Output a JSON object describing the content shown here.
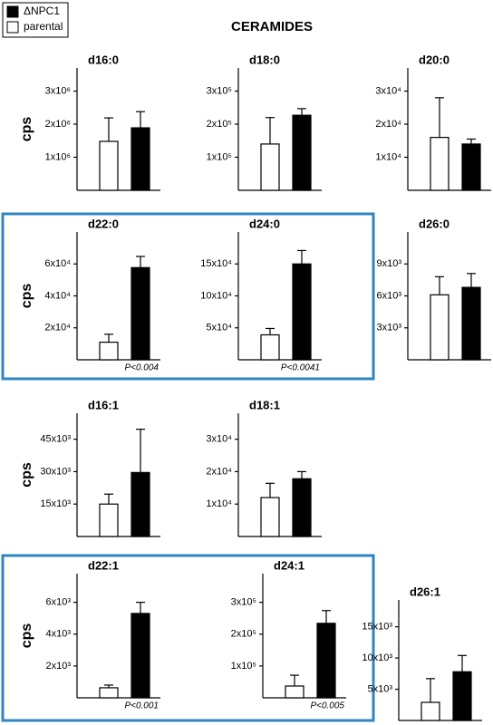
{
  "title": "CERAMIDES",
  "legend": [
    {
      "name": "ΔNPC1",
      "color": "#000000"
    },
    {
      "name": "parental",
      "color": "#ffffff"
    }
  ],
  "highlight_color": "#2f86c2",
  "chart_data": [
    {
      "type": "bar",
      "title": "d16:0",
      "ylabel": "cps",
      "values": [
        1480000,
        1890000
      ],
      "errors": [
        710000,
        490000
      ],
      "ylim": [
        0,
        3700000
      ],
      "yticks": [
        {
          "value": 1000000,
          "label": "1x10⁶"
        },
        {
          "value": 2000000,
          "label": "2x10⁶"
        },
        {
          "value": 3000000,
          "label": "3x10⁶"
        }
      ]
    },
    {
      "type": "bar",
      "title": "d18:0",
      "values": [
        140000,
        227000
      ],
      "errors": [
        80000,
        20000
      ],
      "ylim": [
        0,
        370000
      ],
      "yticks": [
        {
          "value": 100000,
          "label": "1x10⁵"
        },
        {
          "value": 200000,
          "label": "2x10⁵"
        },
        {
          "value": 300000,
          "label": "3x10⁵"
        }
      ]
    },
    {
      "type": "bar",
      "title": "d20:0",
      "values": [
        16000,
        14000
      ],
      "errors": [
        12000,
        1500
      ],
      "ylim": [
        0,
        37000
      ],
      "yticks": [
        {
          "value": 10000,
          "label": "1x10⁴"
        },
        {
          "value": 20000,
          "label": "2x10⁴"
        },
        {
          "value": 30000,
          "label": "3x10⁴"
        }
      ]
    },
    {
      "type": "bar",
      "title": "d22:0",
      "highlight": true,
      "ylabel": "cps",
      "values": [
        11000,
        57700
      ],
      "errors": [
        5000,
        7000
      ],
      "ylim": [
        0,
        80000
      ],
      "pvalue": "P<0.004",
      "yticks": [
        {
          "value": 20000,
          "label": "2x10⁴"
        },
        {
          "value": 40000,
          "label": "4x10⁴"
        },
        {
          "value": 60000,
          "label": "6x10⁴"
        }
      ]
    },
    {
      "type": "bar",
      "title": "d24:0",
      "highlight": true,
      "values": [
        39000,
        150000
      ],
      "errors": [
        10000,
        21000
      ],
      "ylim": [
        0,
        200000
      ],
      "pvalue": "P<0.0041",
      "yticks": [
        {
          "value": 50000,
          "label": "5x10⁴"
        },
        {
          "value": 100000,
          "label": "10x10⁴"
        },
        {
          "value": 150000,
          "label": "15x10⁴"
        }
      ]
    },
    {
      "type": "bar",
      "title": "d26:0",
      "values": [
        6100,
        6800
      ],
      "errors": [
        1700,
        1300
      ],
      "ylim": [
        0,
        12000
      ],
      "yticks": [
        {
          "value": 3000,
          "label": "3x10³"
        },
        {
          "value": 6000,
          "label": "6x10³"
        },
        {
          "value": 9000,
          "label": "9x10³"
        }
      ]
    },
    {
      "type": "bar",
      "title": "d16:1",
      "ylabel": "cps",
      "values": [
        15000,
        29600
      ],
      "errors": [
        4600,
        20000
      ],
      "ylim": [
        0,
        57000
      ],
      "yticks": [
        {
          "value": 15000,
          "label": "15x10³"
        },
        {
          "value": 30000,
          "label": "30x10³"
        },
        {
          "value": 45000,
          "label": "45x10³"
        }
      ]
    },
    {
      "type": "bar",
      "title": "d18:1",
      "values": [
        12000,
        17800
      ],
      "errors": [
        4400,
        2200
      ],
      "ylim": [
        0,
        38000
      ],
      "yticks": [
        {
          "value": 10000,
          "label": "1x10⁴"
        },
        {
          "value": 20000,
          "label": "2x10⁴"
        },
        {
          "value": 30000,
          "label": "3x10⁴"
        }
      ]
    },
    {
      "type": "bar",
      "title": "d22:1",
      "highlight": true,
      "ylabel": "cps",
      "values": [
        630,
        5300
      ],
      "errors": [
        170,
        700
      ],
      "ylim": [
        0,
        7800
      ],
      "pvalue": "P<0.001",
      "yticks": [
        {
          "value": 2000,
          "label": "2x10³"
        },
        {
          "value": 4000,
          "label": "4x10³"
        },
        {
          "value": 6000,
          "label": "6x10³"
        }
      ]
    },
    {
      "type": "bar",
      "title": "d24:1",
      "highlight": true,
      "values": [
        37000,
        234000
      ],
      "errors": [
        34000,
        40000
      ],
      "ylim": [
        0,
        390000
      ],
      "pvalue": "P<0.005",
      "yticks": [
        {
          "value": 100000,
          "label": "1x10⁵"
        },
        {
          "value": 200000,
          "label": "2x10⁵"
        },
        {
          "value": 300000,
          "label": "3x10⁵"
        }
      ]
    },
    {
      "type": "bar",
      "title": "d26:1",
      "values": [
        2900,
        7800
      ],
      "errors": [
        3800,
        2600
      ],
      "ylim": [
        0,
        19300
      ],
      "yticks": [
        {
          "value": 5000,
          "label": "5x10³"
        },
        {
          "value": 10000,
          "label": "10x10³"
        },
        {
          "value": 15000,
          "label": "15x10³"
        }
      ]
    }
  ]
}
